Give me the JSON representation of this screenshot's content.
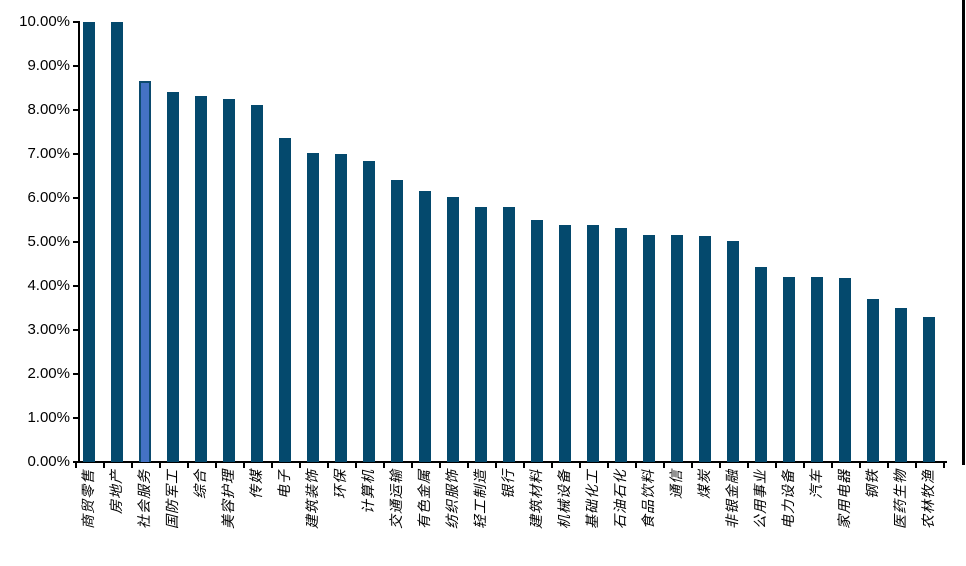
{
  "chart_data": {
    "type": "bar",
    "title": "",
    "xlabel": "",
    "ylabel": "",
    "ylim": [
      0,
      10
    ],
    "grid": false,
    "legend": "none",
    "ytick_labels": [
      "0.00%",
      "1.00%",
      "2.00%",
      "3.00%",
      "4.00%",
      "5.00%",
      "6.00%",
      "7.00%",
      "8.00%",
      "9.00%",
      "10.00%"
    ],
    "ytick_values": [
      0,
      1,
      2,
      3,
      4,
      5,
      6,
      7,
      8,
      9,
      10
    ],
    "categories": [
      "商贸零售",
      "房地产",
      "社会服务",
      "国防军工",
      "综合",
      "美容护理",
      "传媒",
      "电子",
      "建筑装饰",
      "环保",
      "计算机",
      "交通运输",
      "有色金属",
      "纺织服饰",
      "轻工制造",
      "银行",
      "建筑材料",
      "机械设备",
      "基础化工",
      "石油石化",
      "食品饮料",
      "通信",
      "煤炭",
      "非银金融",
      "公用事业",
      "电力设备",
      "汽车",
      "家用电器",
      "钢铁",
      "医药生物",
      "农林牧渔"
    ],
    "values": [
      10.0,
      10.0,
      8.65,
      8.4,
      8.31,
      8.24,
      8.11,
      7.37,
      7.02,
      7.01,
      6.83,
      6.41,
      6.17,
      6.02,
      5.8,
      5.79,
      5.51,
      5.39,
      5.38,
      5.32,
      5.17,
      5.15,
      5.13,
      5.02,
      4.43,
      4.21,
      4.21,
      4.19,
      3.7,
      3.51,
      3.29
    ],
    "highlight_index": 2,
    "colors": {
      "bar_fill": "#04496D",
      "highlight_fill": "#4472C4",
      "highlight_border": "#0B4A6E",
      "axis": "#000000",
      "background": "#FFFFFF"
    }
  }
}
